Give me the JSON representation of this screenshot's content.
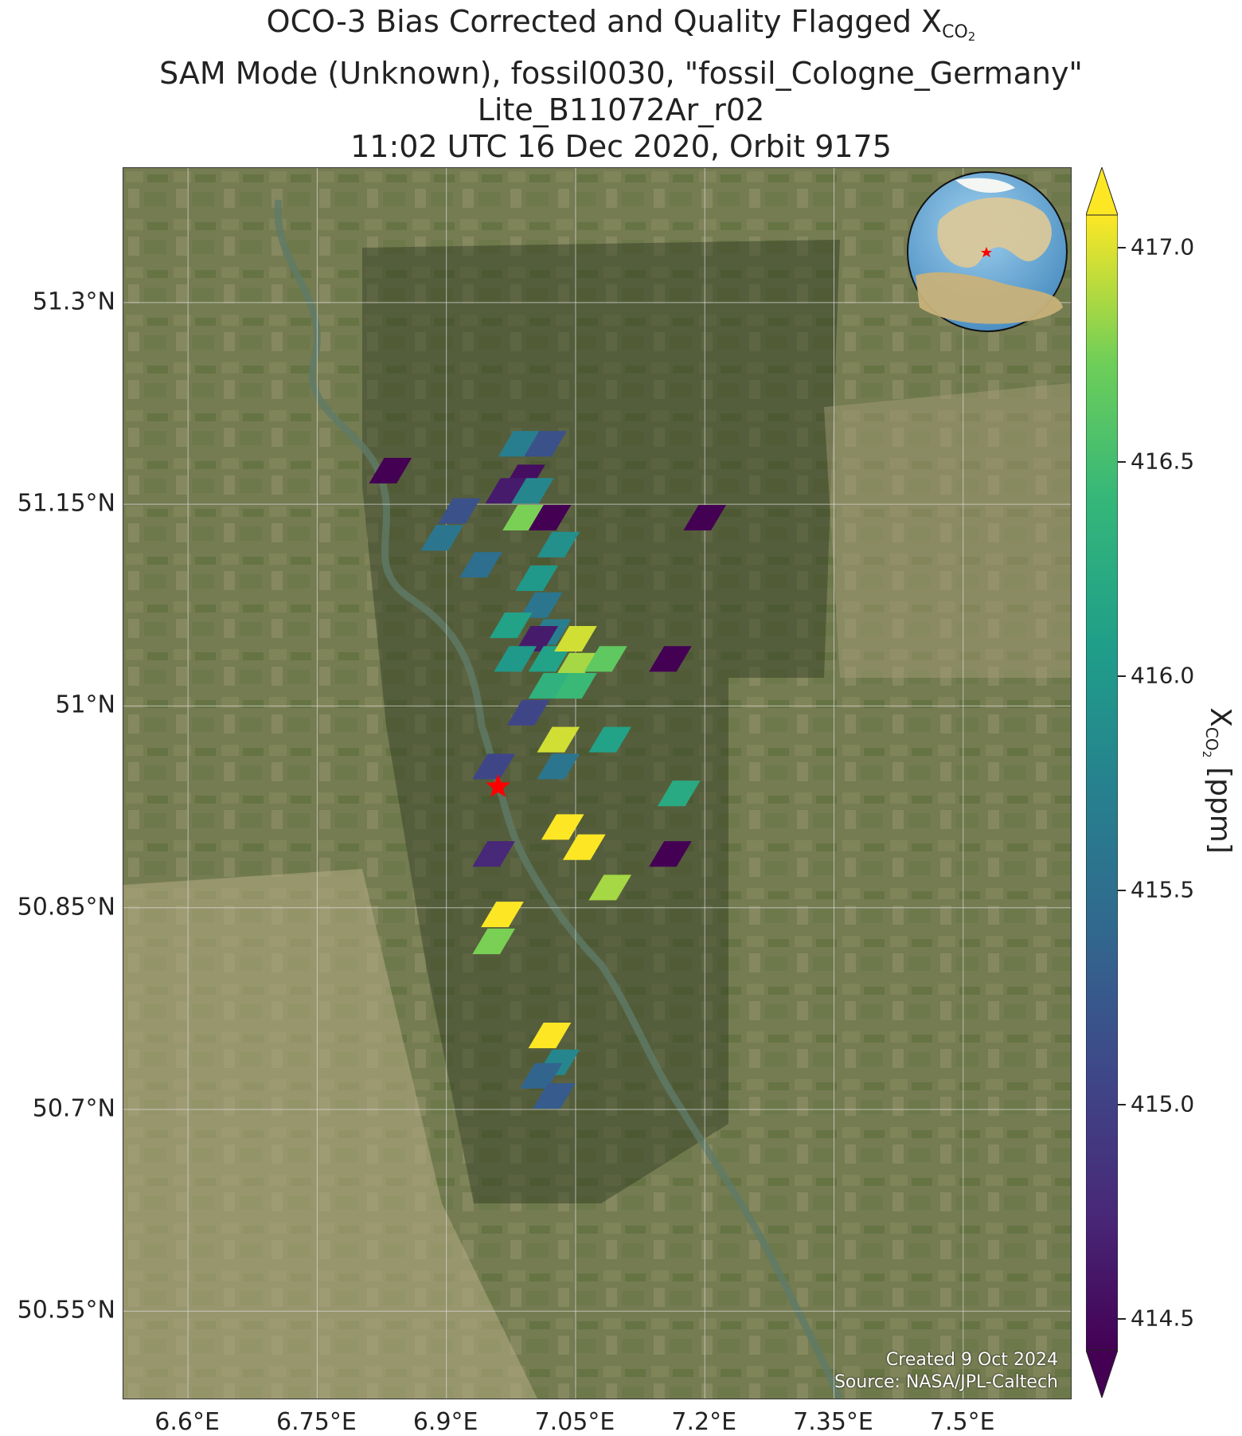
{
  "title": {
    "line1_prefix": "OCO-3 Bias Corrected and Quality Flagged X",
    "line1_sub": "CO",
    "line1_sub2": "2",
    "line2": "SAM Mode (Unknown), fossil0030, \"fossil_Cologne_Germany\"",
    "line3": "Lite_B11072Ar_r02",
    "line4": "11:02 UTC 16 Dec 2020, Orbit 9175"
  },
  "map": {
    "lon_range": [
      6.525,
      7.625
    ],
    "lat_range": [
      50.485,
      51.4
    ],
    "lon_ticks": [
      6.6,
      6.75,
      6.9,
      7.05,
      7.2,
      7.35,
      7.5
    ],
    "lon_tick_labels": [
      "6.6°E",
      "6.75°E",
      "6.9°E",
      "7.05°E",
      "7.2°E",
      "7.35°E",
      "7.5°E"
    ],
    "lat_ticks": [
      50.55,
      50.7,
      50.85,
      51.0,
      51.15,
      51.3
    ],
    "lat_tick_labels": [
      "50.55°N",
      "50.7°N",
      "50.85°N",
      "51°N",
      "51.15°N",
      "51.3°N"
    ],
    "site_marker": {
      "lon": 6.96,
      "lat": 50.94,
      "color": "#ff0000",
      "icon": "star-icon"
    },
    "inset_globe": {
      "icon": "globe-icon",
      "marker_color": "#ff0000"
    }
  },
  "soundings": [
    {
      "lon": 6.835,
      "lat": 51.175,
      "xco2": 414.4
    },
    {
      "lon": 6.915,
      "lat": 51.145,
      "xco2": 415.2
    },
    {
      "lon": 6.895,
      "lat": 51.125,
      "xco2": 415.6
    },
    {
      "lon": 6.94,
      "lat": 51.105,
      "xco2": 415.5
    },
    {
      "lon": 6.985,
      "lat": 51.195,
      "xco2": 415.7
    },
    {
      "lon": 7.015,
      "lat": 51.195,
      "xco2": 415.2
    },
    {
      "lon": 6.99,
      "lat": 51.17,
      "xco2": 414.6
    },
    {
      "lon": 6.97,
      "lat": 51.16,
      "xco2": 414.7
    },
    {
      "lon": 7.0,
      "lat": 51.16,
      "xco2": 415.8
    },
    {
      "lon": 6.99,
      "lat": 51.14,
      "xco2": 416.7
    },
    {
      "lon": 7.02,
      "lat": 51.14,
      "xco2": 414.4
    },
    {
      "lon": 7.03,
      "lat": 51.12,
      "xco2": 415.9
    },
    {
      "lon": 7.005,
      "lat": 51.095,
      "xco2": 416.0
    },
    {
      "lon": 7.01,
      "lat": 51.075,
      "xco2": 415.6
    },
    {
      "lon": 7.02,
      "lat": 51.055,
      "xco2": 415.7
    },
    {
      "lon": 6.975,
      "lat": 51.06,
      "xco2": 416.1
    },
    {
      "lon": 7.005,
      "lat": 51.05,
      "xco2": 414.7
    },
    {
      "lon": 6.98,
      "lat": 51.035,
      "xco2": 416.0
    },
    {
      "lon": 7.02,
      "lat": 51.035,
      "xco2": 416.1
    },
    {
      "lon": 7.05,
      "lat": 51.05,
      "xco2": 416.9
    },
    {
      "lon": 7.05,
      "lat": 51.03,
      "xco2": 416.8
    },
    {
      "lon": 7.085,
      "lat": 51.035,
      "xco2": 416.6
    },
    {
      "lon": 7.02,
      "lat": 51.015,
      "xco2": 416.3
    },
    {
      "lon": 7.05,
      "lat": 51.015,
      "xco2": 416.4
    },
    {
      "lon": 7.16,
      "lat": 51.035,
      "xco2": 414.4
    },
    {
      "lon": 6.995,
      "lat": 50.995,
      "xco2": 415.1
    },
    {
      "lon": 7.03,
      "lat": 50.975,
      "xco2": 416.9
    },
    {
      "lon": 7.03,
      "lat": 50.955,
      "xco2": 415.6
    },
    {
      "lon": 7.09,
      "lat": 50.975,
      "xco2": 416.1
    },
    {
      "lon": 6.955,
      "lat": 50.955,
      "xco2": 415.1
    },
    {
      "lon": 7.17,
      "lat": 50.935,
      "xco2": 416.2
    },
    {
      "lon": 7.035,
      "lat": 50.91,
      "xco2": 417.0
    },
    {
      "lon": 7.06,
      "lat": 50.895,
      "xco2": 417.0
    },
    {
      "lon": 6.955,
      "lat": 50.89,
      "xco2": 414.8
    },
    {
      "lon": 7.16,
      "lat": 50.89,
      "xco2": 414.4
    },
    {
      "lon": 7.09,
      "lat": 50.865,
      "xco2": 416.8
    },
    {
      "lon": 6.965,
      "lat": 50.845,
      "xco2": 417.0
    },
    {
      "lon": 6.955,
      "lat": 50.825,
      "xco2": 416.7
    },
    {
      "lon": 7.02,
      "lat": 50.755,
      "xco2": 417.0
    },
    {
      "lon": 7.03,
      "lat": 50.735,
      "xco2": 415.8
    },
    {
      "lon": 7.01,
      "lat": 50.725,
      "xco2": 415.4
    },
    {
      "lon": 7.025,
      "lat": 50.71,
      "xco2": 415.3
    },
    {
      "lon": 7.2,
      "lat": 51.14,
      "xco2": 414.4
    }
  ],
  "colorbar": {
    "min": 414.5,
    "max": 417.0,
    "ticks": [
      414.5,
      415.0,
      415.5,
      416.0,
      416.5,
      417.0
    ],
    "tick_labels": [
      "414.5",
      "415.0",
      "415.5",
      "416.0",
      "416.5",
      "417.0"
    ],
    "title_prefix": "X",
    "title_sub": "CO",
    "title_sub2": "2",
    "title_suffix": " [ppm]",
    "colormap": "viridis"
  },
  "credits": {
    "line1": "Created 9 Oct 2024",
    "line2": "Source: NASA/JPL-Caltech"
  }
}
